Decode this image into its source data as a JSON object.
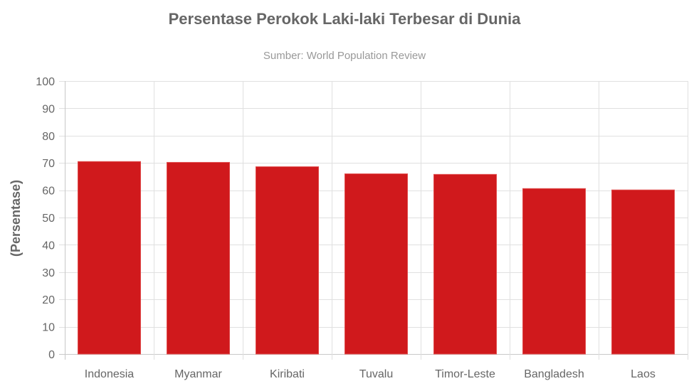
{
  "chart_data": {
    "type": "bar",
    "title": "Persentase Perokok Laki-laki Terbesar di Dunia",
    "subtitle": "Sumber: World Population Review",
    "xlabel": "",
    "ylabel": "(Persentase)",
    "categories": [
      "Indonesia",
      "Myanmar",
      "Kiribati",
      "Tuvalu",
      "Timor-Leste",
      "Bangladesh",
      "Laos"
    ],
    "values": [
      70.5,
      70.2,
      68.6,
      66.0,
      65.8,
      60.6,
      60.1
    ],
    "ylim": [
      0,
      100
    ],
    "yticks": [
      "0",
      "10",
      "20",
      "30",
      "40",
      "50",
      "60",
      "70",
      "80",
      "90",
      "100"
    ],
    "grid": true,
    "legend": "none",
    "colors": {
      "bar": "#D0191C",
      "bar_border": "#e04a4a",
      "grid": "#e0e0e0",
      "axis": "#c8c8c8"
    }
  }
}
